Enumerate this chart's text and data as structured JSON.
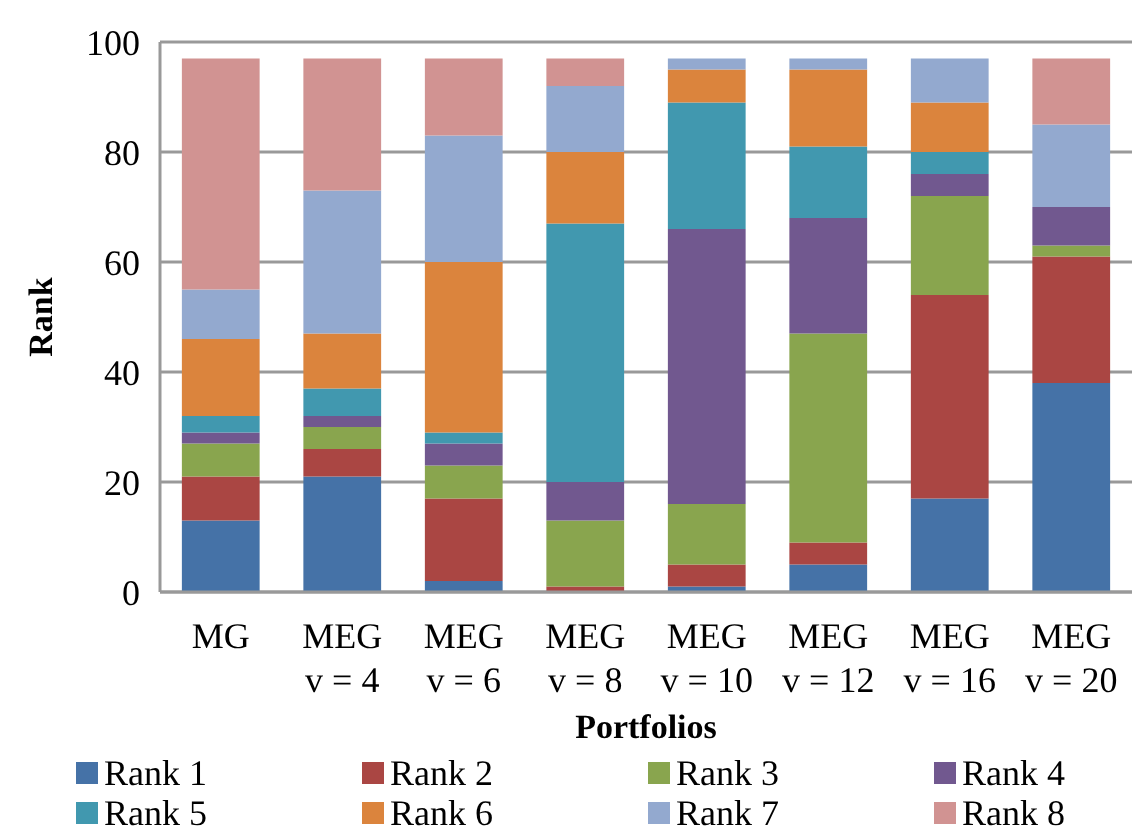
{
  "chart_data": {
    "type": "bar",
    "stacked": true,
    "xlabel": "Portfolios",
    "ylabel": "Rank",
    "categories": [
      "MG",
      "MEG\nv = 4",
      "MEG\nv = 6",
      "MEG\nv = 8",
      "MEG\nv = 10",
      "MEG\nv = 12",
      "MEG\nv = 16",
      "MEG\nv = 20"
    ],
    "series": [
      {
        "name": "Rank 1",
        "color": "#4572a7",
        "values": [
          13,
          21,
          2,
          0,
          1,
          5,
          17,
          38
        ]
      },
      {
        "name": "Rank 2",
        "color": "#aa4643",
        "values": [
          8,
          5,
          15,
          1,
          4,
          4,
          37,
          23
        ]
      },
      {
        "name": "Rank 3",
        "color": "#89a54e",
        "values": [
          6,
          4,
          6,
          12,
          11,
          38,
          18,
          2
        ]
      },
      {
        "name": "Rank 4",
        "color": "#71588f",
        "values": [
          2,
          2,
          4,
          7,
          50,
          21,
          4,
          7
        ]
      },
      {
        "name": "Rank 5",
        "color": "#4198af",
        "values": [
          3,
          5,
          2,
          47,
          23,
          13,
          4,
          0
        ]
      },
      {
        "name": "Rank 6",
        "color": "#db843d",
        "values": [
          14,
          10,
          31,
          13,
          6,
          14,
          9,
          0
        ]
      },
      {
        "name": "Rank 7",
        "color": "#93a9cf",
        "values": [
          9,
          26,
          23,
          12,
          2,
          2,
          8,
          15
        ]
      },
      {
        "name": "Rank 8",
        "color": "#d19392",
        "values": [
          42,
          24,
          14,
          5,
          0,
          0,
          0,
          12
        ]
      }
    ],
    "ylim": [
      0,
      100
    ],
    "yticks": [
      0,
      20,
      40,
      60,
      80,
      100
    ],
    "grid": "y",
    "legend": "bottom"
  }
}
